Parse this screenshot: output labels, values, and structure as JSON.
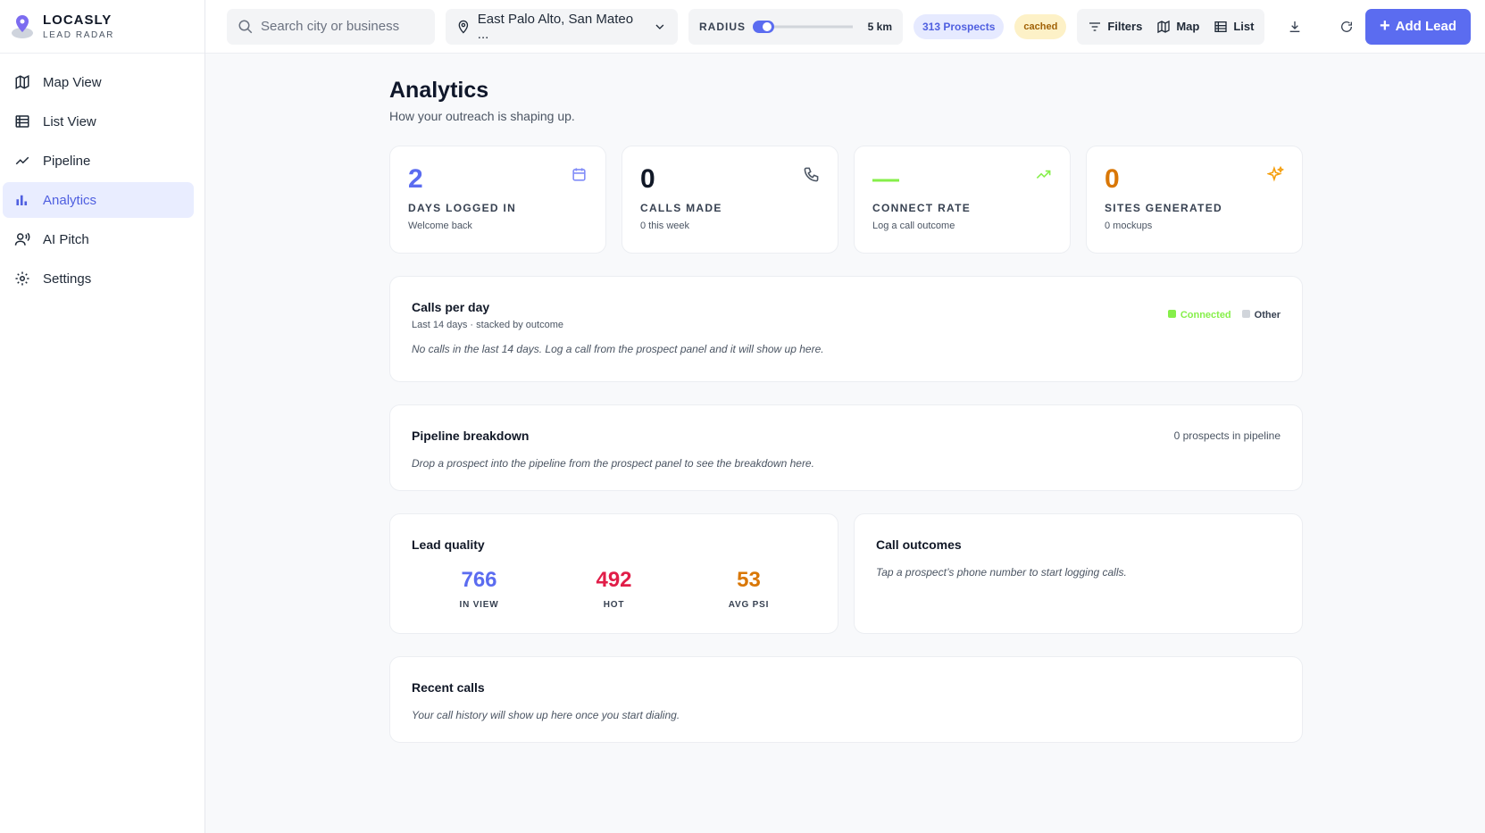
{
  "brand": {
    "name": "LOCASLY",
    "tagline": "LEAD RADAR"
  },
  "nav": [
    {
      "label": "Map View",
      "active": false
    },
    {
      "label": "List View",
      "active": false
    },
    {
      "label": "Pipeline",
      "active": false
    },
    {
      "label": "Analytics",
      "active": true
    },
    {
      "label": "AI Pitch",
      "active": false
    },
    {
      "label": "Settings",
      "active": false
    }
  ],
  "toolbar": {
    "search_placeholder": "Search city or business",
    "location": "East Palo Alto, San Mateo ...",
    "radius_label": "RADIUS",
    "radius_value": "5 km",
    "prospects": "313 Prospects",
    "cache": "cached",
    "filters": "Filters",
    "map": "Map",
    "list": "List",
    "add_lead": "Add Lead"
  },
  "header": {
    "title": "Analytics",
    "subtitle": "How your outreach is shaping up."
  },
  "stats": [
    {
      "value": 2,
      "label": "DAYS LOGGED IN",
      "note": "Welcome back"
    },
    {
      "value": 0,
      "label": "CALLS MADE",
      "note": "0 this week"
    },
    {
      "value": "—",
      "label": "CONNECT RATE",
      "note": "Log a call outcome"
    },
    {
      "value": 0,
      "label": "SITES GENERATED",
      "note": "0 mockups"
    }
  ],
  "calls_per_day": {
    "title": "Calls per day",
    "subtitle": "Last 14 days · stacked by outcome",
    "legend": [
      "Connected",
      "Other"
    ],
    "empty": "No calls in the last 14 days. Log a call from the prospect panel and it will show up here."
  },
  "pipeline": {
    "title": "Pipeline breakdown",
    "count": "0 prospects in pipeline",
    "empty": "Drop a prospect into the pipeline from the prospect panel to see the breakdown here."
  },
  "lead_quality": {
    "title": "Lead quality",
    "metrics": [
      {
        "value": 766,
        "label": "IN VIEW"
      },
      {
        "value": 492,
        "label": "HOT"
      },
      {
        "value": 53,
        "label": "AVG PSI"
      }
    ]
  },
  "call_outcomes": {
    "title": "Call outcomes",
    "empty": "Tap a prospect’s phone number to start logging calls."
  },
  "recent_calls": {
    "title": "Recent calls",
    "empty": "Your call history will show up here once you start dialing."
  }
}
